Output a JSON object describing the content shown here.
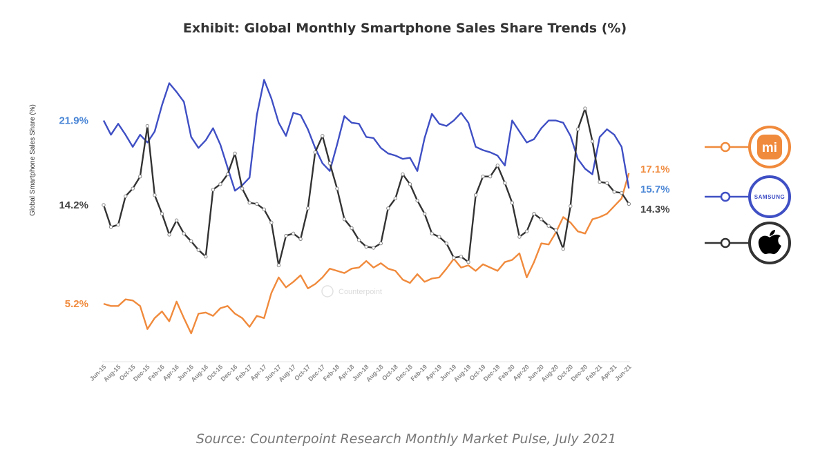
{
  "chart_data": {
    "type": "line",
    "title": "Exhibit: Global Monthly Smartphone Sales Share Trends (%)",
    "source": "Source: Counterpoint Research Monthly Market Pulse, July 2021",
    "ylabel": "Global Smartphone Sales Share (%)",
    "xlabel": "",
    "grid": false,
    "legend_placement": "right",
    "watermark": "Counterpoint",
    "x": [
      "Jun-15",
      "Jul-15",
      "Aug-15",
      "Sep-15",
      "Oct-15",
      "Nov-15",
      "Dec-15",
      "Jan-16",
      "Feb-16",
      "Mar-16",
      "Apr-16",
      "May-16",
      "Jun-16",
      "Jul-16",
      "Aug-16",
      "Sep-16",
      "Oct-16",
      "Nov-16",
      "Dec-16",
      "Jan-17",
      "Feb-17",
      "Mar-17",
      "Apr-17",
      "May-17",
      "Jun-17",
      "Jul-17",
      "Aug-17",
      "Sep-17",
      "Oct-17",
      "Nov-17",
      "Dec-17",
      "Jan-18",
      "Feb-18",
      "Mar-18",
      "Apr-18",
      "May-18",
      "Jun-18",
      "Jul-18",
      "Aug-18",
      "Sep-18",
      "Oct-18",
      "Nov-18",
      "Dec-18",
      "Jan-19",
      "Feb-19",
      "Mar-19",
      "Apr-19",
      "May-19",
      "Jun-19",
      "Jul-19",
      "Aug-19",
      "Sep-19",
      "Oct-19",
      "Nov-19",
      "Dec-19",
      "Jan-20",
      "Feb-20",
      "Mar-20",
      "Apr-20",
      "May-20",
      "Jun-20",
      "Jul-20",
      "Aug-20",
      "Sep-20",
      "Oct-20",
      "Nov-20",
      "Dec-20",
      "Jan-21",
      "Feb-21",
      "Mar-21",
      "Apr-21",
      "May-21",
      "Jun-21"
    ],
    "tick_labels": [
      "Jun-15",
      "Aug-15",
      "Oct-15",
      "Dec-15",
      "Feb-16",
      "Apr-16",
      "Jun-16",
      "Aug-16",
      "Oct-16",
      "Dec-16",
      "Feb-17",
      "Apr-17",
      "Jun-17",
      "Aug-17",
      "Oct-17",
      "Dec-17",
      "Feb-18",
      "Apr-18",
      "Jun-18",
      "Aug-18",
      "Oct-18",
      "Dec-18",
      "Feb-19",
      "Apr-19",
      "Jun-19",
      "Aug-19",
      "Oct-19",
      "Dec-19",
      "Feb-20",
      "Apr-20",
      "Jun-20",
      "Aug-20",
      "Oct-20",
      "Dec-20",
      "Feb-21",
      "Apr-21",
      "Jun-21"
    ],
    "ylim": [
      0,
      27
    ],
    "series": [
      {
        "name": "Samsung",
        "logo": "SAMSUNG",
        "color": "#3f4fc4",
        "label_color": "#4a86d6",
        "markers": false,
        "start_label": "21.9%",
        "end_label": "15.7%",
        "values": [
          21.9,
          20.6,
          21.6,
          20.6,
          19.5,
          20.6,
          19.9,
          20.9,
          23.3,
          25.3,
          24.5,
          23.6,
          20.4,
          19.4,
          20.1,
          21.2,
          19.7,
          17.6,
          15.5,
          16.0,
          16.7,
          22.4,
          25.6,
          23.9,
          21.7,
          20.5,
          22.6,
          22.4,
          21.1,
          19.4,
          18.0,
          17.3,
          19.7,
          22.3,
          21.7,
          21.6,
          20.4,
          20.3,
          19.4,
          18.9,
          18.7,
          18.4,
          18.5,
          17.3,
          20.3,
          22.5,
          21.6,
          21.4,
          21.9,
          22.6,
          21.7,
          19.5,
          19.2,
          19.0,
          18.7,
          17.8,
          21.9,
          20.9,
          19.9,
          20.2,
          21.2,
          21.9,
          21.9,
          21.7,
          20.5,
          18.4,
          17.5,
          17.0,
          20.4,
          21.1,
          20.6,
          19.5,
          15.7
        ]
      },
      {
        "name": "Apple",
        "logo": "apple",
        "color": "#333333",
        "label_color": "#444444",
        "markers": true,
        "start_label": "14.2%",
        "end_label": "14.3%",
        "values": [
          14.2,
          12.2,
          12.4,
          15.0,
          15.7,
          16.8,
          21.4,
          15.1,
          13.4,
          11.5,
          12.8,
          11.6,
          10.9,
          10.1,
          9.5,
          15.6,
          16.1,
          17.0,
          18.9,
          15.7,
          14.4,
          14.3,
          13.8,
          12.6,
          8.7,
          11.4,
          11.6,
          11.1,
          13.9,
          19.0,
          20.5,
          18.0,
          15.7,
          12.9,
          12.1,
          11.0,
          10.4,
          10.3,
          10.7,
          13.9,
          14.8,
          17.0,
          16.1,
          14.6,
          13.4,
          11.6,
          11.3,
          10.7,
          9.4,
          9.5,
          9.0,
          15.1,
          16.8,
          16.8,
          17.8,
          16.2,
          14.4,
          11.3,
          11.8,
          13.4,
          12.9,
          12.3,
          11.9,
          10.2,
          14.1,
          21.1,
          23.0,
          20.0,
          16.3,
          16.2,
          15.4,
          15.3,
          14.3
        ]
      },
      {
        "name": "Xiaomi",
        "logo": "MI",
        "color": "#f08a3c",
        "label_color": "#f08a3c",
        "markers": false,
        "start_label": "5.2%",
        "end_label": "17.1%",
        "values": [
          5.2,
          5.0,
          5.0,
          5.6,
          5.5,
          5.0,
          2.9,
          3.9,
          4.5,
          3.6,
          5.4,
          3.9,
          2.5,
          4.3,
          4.4,
          4.1,
          4.8,
          5.0,
          4.3,
          3.9,
          3.1,
          4.1,
          3.9,
          6.2,
          7.6,
          6.7,
          7.2,
          7.8,
          6.6,
          7.0,
          7.6,
          8.4,
          8.2,
          8.0,
          8.4,
          8.5,
          9.1,
          8.5,
          8.9,
          8.4,
          8.2,
          7.4,
          7.1,
          7.9,
          7.2,
          7.5,
          7.6,
          8.4,
          9.3,
          8.5,
          8.7,
          8.2,
          8.8,
          8.5,
          8.2,
          9.0,
          9.2,
          9.8,
          7.6,
          9.0,
          10.7,
          10.6,
          11.7,
          13.1,
          12.6,
          11.8,
          11.6,
          12.9,
          13.1,
          13.4,
          14.1,
          14.8,
          17.1
        ]
      }
    ]
  }
}
